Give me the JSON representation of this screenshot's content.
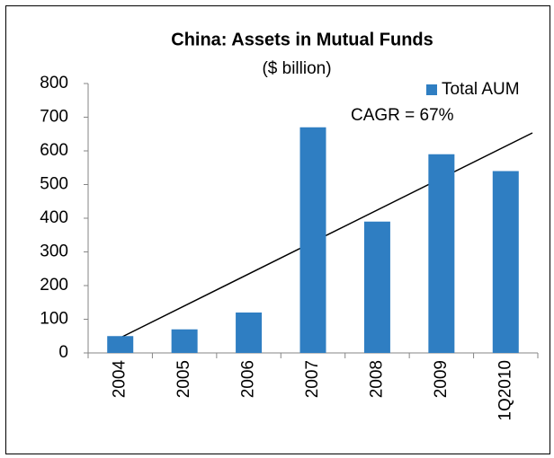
{
  "chart_data": {
    "type": "bar",
    "title": "China: Assets in Mutual Funds",
    "subtitle": "($ billion)",
    "categories": [
      "2004",
      "2005",
      "2006",
      "2007",
      "2008",
      "2009",
      "1Q2010"
    ],
    "series": [
      {
        "name": "Total AUM",
        "color": "#2f7ec2",
        "values": [
          50,
          70,
          120,
          670,
          390,
          590,
          540
        ]
      }
    ],
    "ylim": [
      0,
      800
    ],
    "yticks": [
      0,
      100,
      200,
      300,
      400,
      500,
      600,
      700,
      800
    ],
    "annotations": [
      "CAGR = 67%"
    ],
    "legend": "upper right",
    "grid": false
  }
}
